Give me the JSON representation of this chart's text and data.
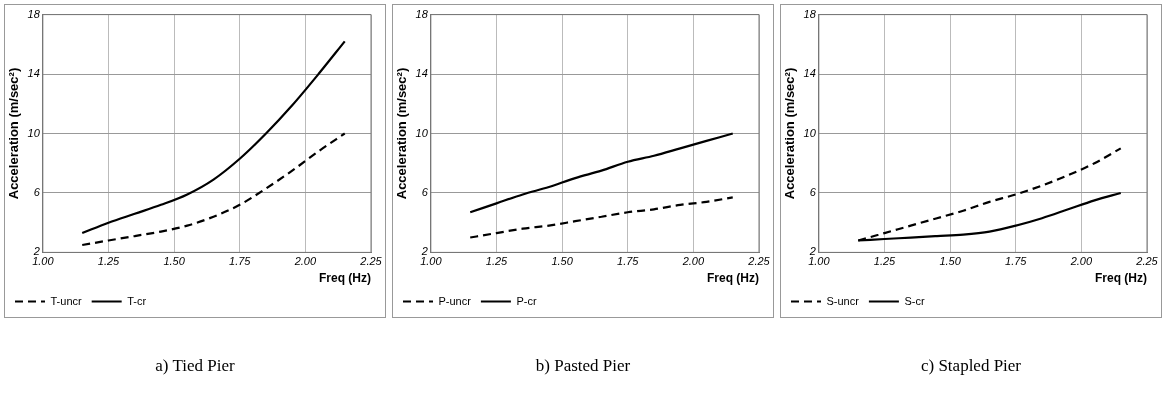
{
  "chart_data": [
    {
      "type": "line",
      "title": "a) Tied Pier",
      "xlabel": "Freq (Hz)",
      "ylabel": "Acceleration (m/sec²)",
      "x": [
        1.15,
        1.25,
        1.35,
        1.45,
        1.55,
        1.65,
        1.75,
        1.85,
        1.95,
        2.05,
        2.15
      ],
      "xlim": [
        1.0,
        2.25
      ],
      "xticks": [
        {
          "value": 1,
          "label": "1.00"
        },
        1.25,
        {
          "value": 1.5,
          "label": "1.50"
        },
        1.75,
        {
          "value": 2,
          "label": "2.00"
        },
        2.25
      ],
      "ylim": [
        2,
        18
      ],
      "yticks": [
        2,
        6,
        10,
        14,
        18
      ],
      "grid": true,
      "legend": "bottom",
      "marker": "none",
      "series": [
        {
          "name": "T-uncr",
          "color": "#000000",
          "line_style": "dashed",
          "values": [
            2.5,
            2.8,
            3.1,
            3.4,
            3.8,
            4.4,
            5.2,
            6.3,
            7.5,
            8.8,
            10.0
          ]
        },
        {
          "name": "T-cr",
          "color": "#000000",
          "line_style": "solid",
          "values": [
            3.3,
            4.0,
            4.6,
            5.2,
            5.9,
            6.9,
            8.3,
            10.0,
            11.9,
            14.0,
            16.2
          ]
        }
      ]
    },
    {
      "type": "line",
      "title": "b) Pasted Pier",
      "xlabel": "Freq (Hz)",
      "ylabel": "Acceleration (m/sec²)",
      "x": [
        1.15,
        1.25,
        1.35,
        1.45,
        1.55,
        1.65,
        1.75,
        1.85,
        1.95,
        2.05,
        2.15
      ],
      "xlim": [
        1.0,
        2.25
      ],
      "xticks": [
        {
          "value": 1,
          "label": "1.00"
        },
        1.25,
        {
          "value": 1.5,
          "label": "1.50"
        },
        1.75,
        {
          "value": 2,
          "label": "2.00"
        },
        2.25
      ],
      "ylim": [
        2,
        18
      ],
      "yticks": [
        2,
        6,
        10,
        14,
        18
      ],
      "grid": true,
      "legend": "bottom",
      "marker": "none",
      "series": [
        {
          "name": "P-uncr",
          "color": "#000000",
          "line_style": "dashed",
          "values": [
            3.0,
            3.3,
            3.6,
            3.8,
            4.1,
            4.4,
            4.7,
            4.9,
            5.2,
            5.4,
            5.7
          ]
        },
        {
          "name": "P-cr",
          "color": "#000000",
          "line_style": "solid",
          "values": [
            4.7,
            5.3,
            5.9,
            6.4,
            7.0,
            7.5,
            8.1,
            8.5,
            9.0,
            9.5,
            10.0
          ]
        }
      ]
    },
    {
      "type": "line",
      "title": "c) Stapled Pier",
      "xlabel": "Freq (Hz)",
      "ylabel": "Acceleration (m/sec²)",
      "x": [
        1.15,
        1.25,
        1.35,
        1.45,
        1.55,
        1.65,
        1.75,
        1.85,
        1.95,
        2.05,
        2.15
      ],
      "xlim": [
        1.0,
        2.25
      ],
      "xticks": [
        {
          "value": 1,
          "label": "1.00"
        },
        1.25,
        {
          "value": 1.5,
          "label": "1.50"
        },
        1.75,
        {
          "value": 2,
          "label": "2.00"
        },
        2.25
      ],
      "ylim": [
        2,
        18
      ],
      "yticks": [
        2,
        6,
        10,
        14,
        18
      ],
      "grid": true,
      "legend": "bottom",
      "marker": "none",
      "series": [
        {
          "name": "S-uncr",
          "color": "#000000",
          "line_style": "dashed",
          "values": [
            2.8,
            3.3,
            3.8,
            4.3,
            4.8,
            5.4,
            5.9,
            6.5,
            7.2,
            8.0,
            9.0
          ]
        },
        {
          "name": "S-cr",
          "color": "#000000",
          "line_style": "solid",
          "values": [
            2.8,
            2.9,
            3.0,
            3.1,
            3.2,
            3.4,
            3.8,
            4.3,
            4.9,
            5.5,
            6.0
          ]
        }
      ]
    }
  ]
}
